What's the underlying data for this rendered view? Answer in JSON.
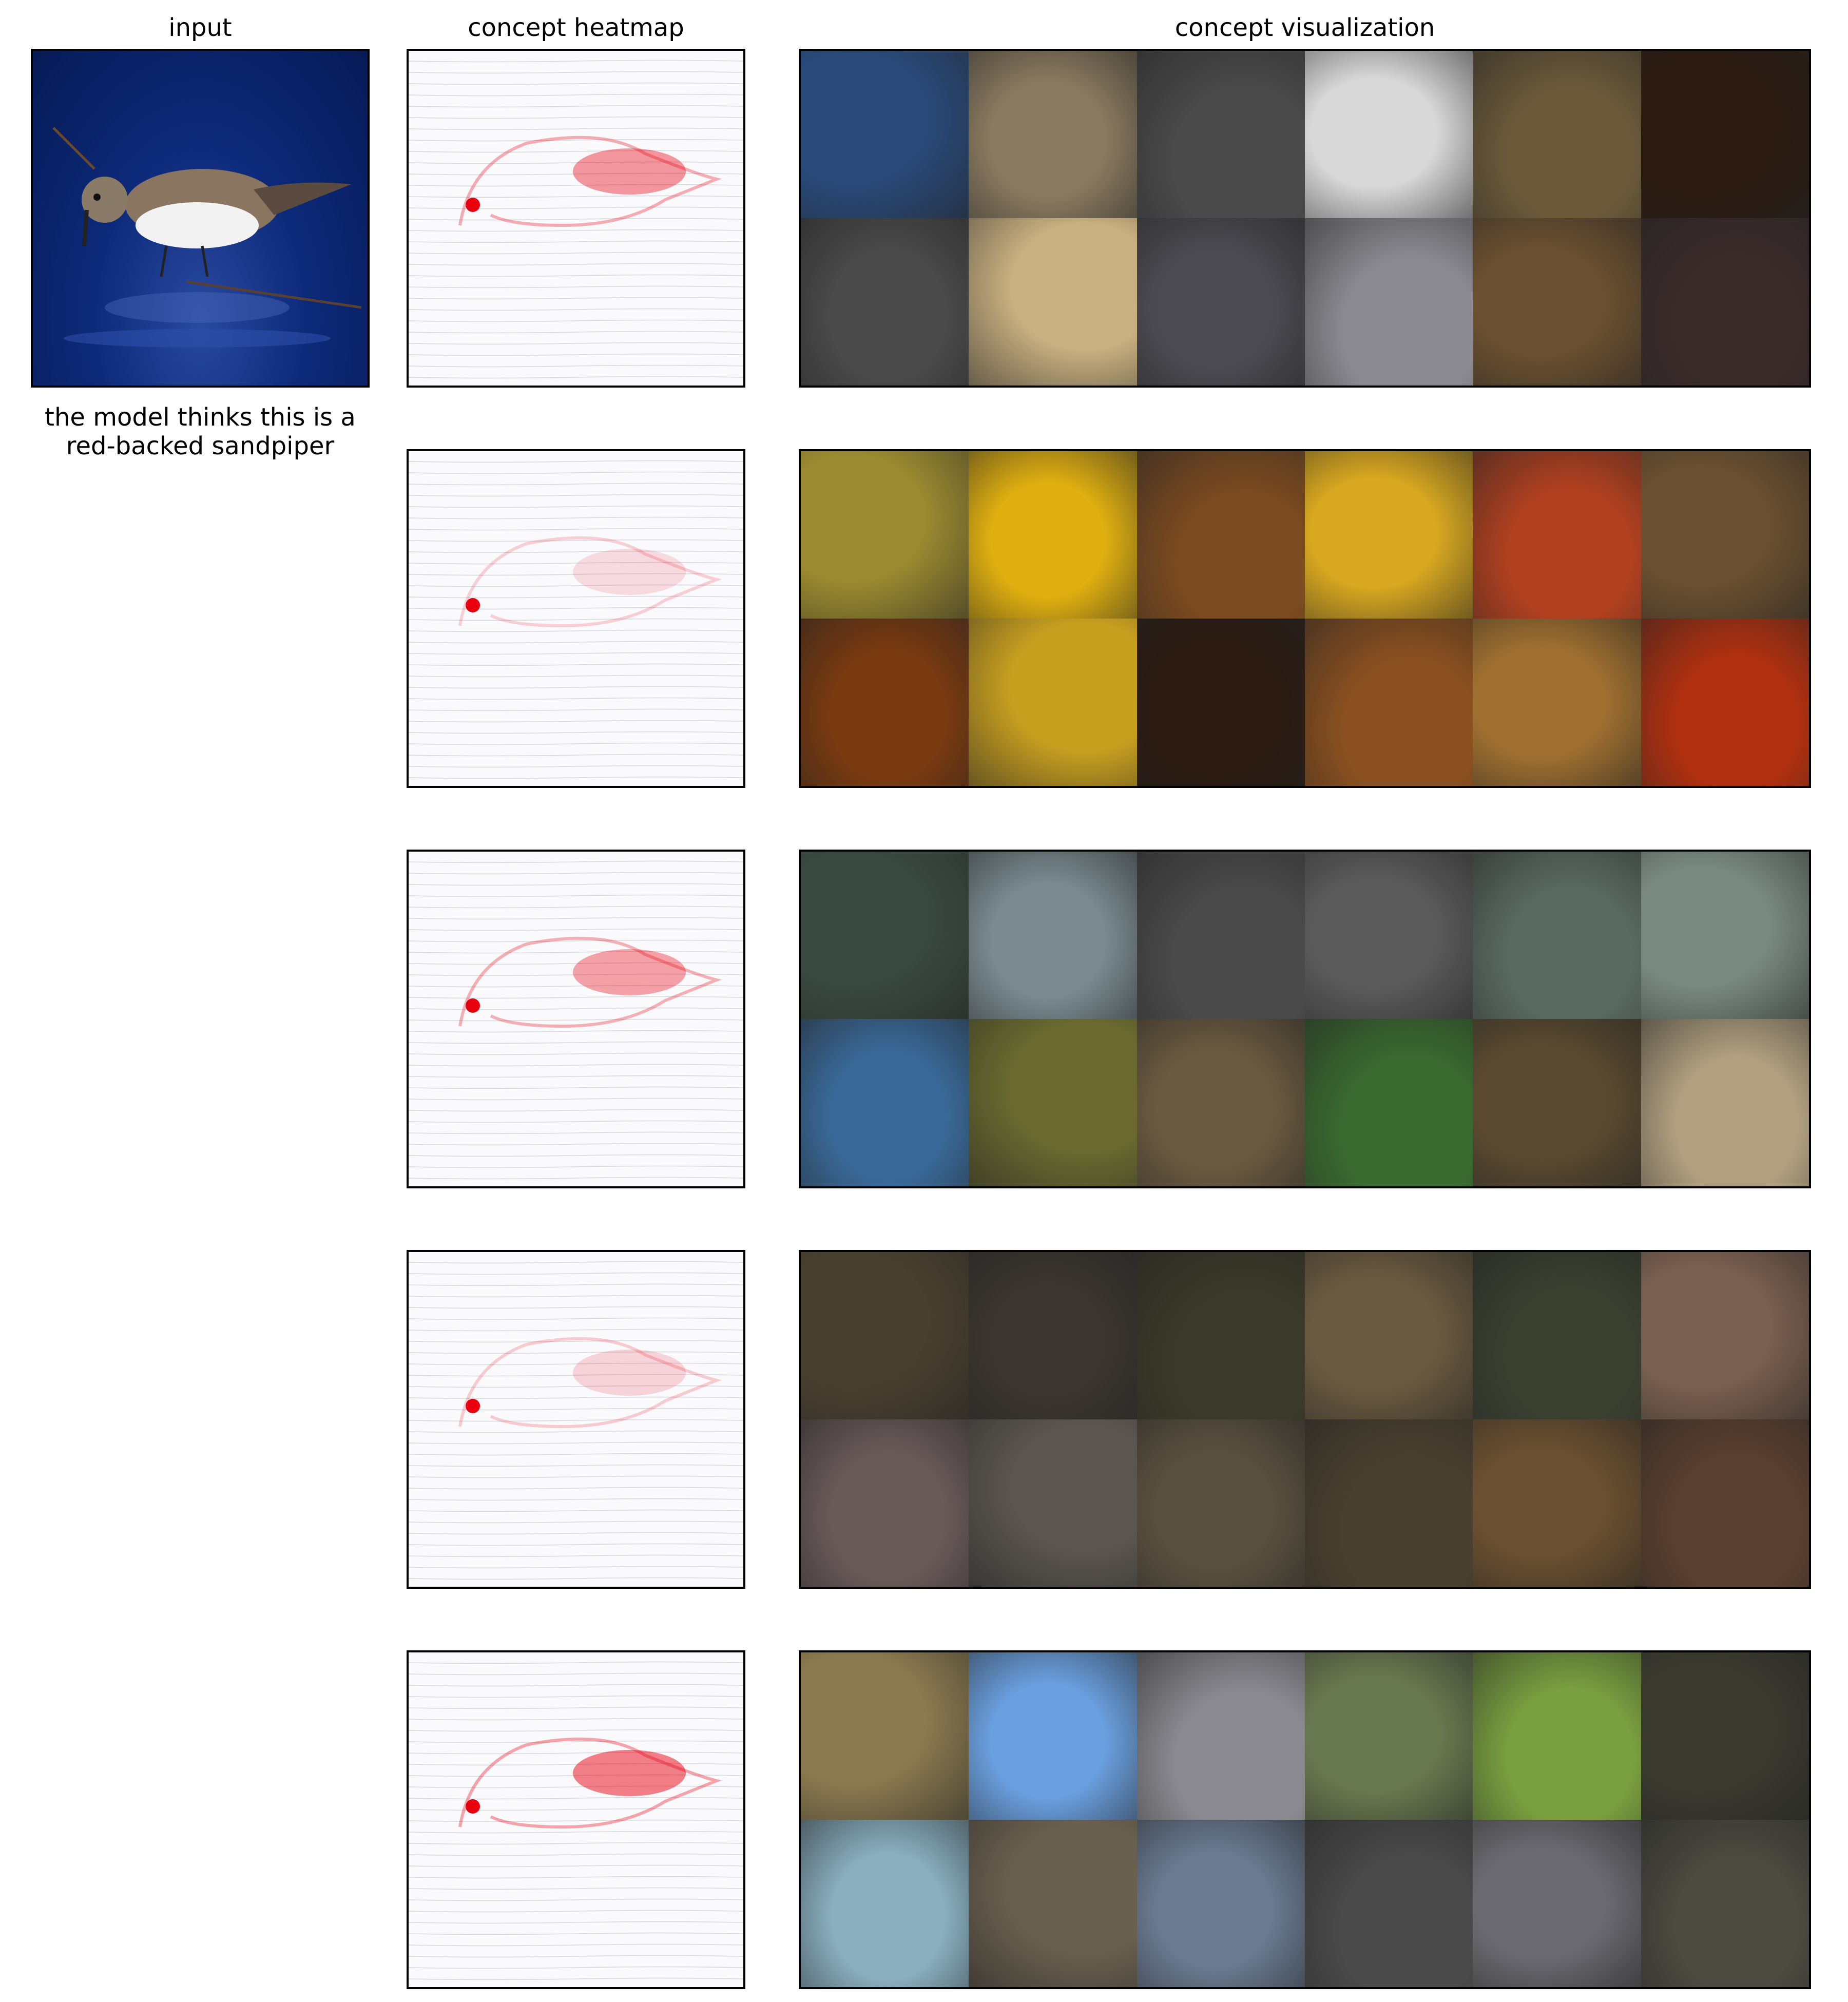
{
  "columns": {
    "input": "input",
    "heatmap": "concept heatmap",
    "visualization": "concept visualization"
  },
  "caption": {
    "line1": "the model thinks this is a",
    "line2": "red-backed sandpiper"
  },
  "heat_color": "#e8000f",
  "rows": [
    {
      "id": 1,
      "heat_intensity": 0.9,
      "tiles": [
        "#2a4a7a",
        "#8a7a60",
        "#4a4a4a",
        "#d8d8d8",
        "#6a5a3a",
        "#2a1a10",
        "#4a4a4a",
        "#c8b080",
        "#4a4a50",
        "#8a8a90",
        "#6a5030",
        "#3a2a2a"
      ]
    },
    {
      "id": 2,
      "heat_intensity": 0.5,
      "tiles": [
        "#9a8a30",
        "#e0b010",
        "#7a4a20",
        "#d8a820",
        "#b04020",
        "#6a5030",
        "#7a3a10",
        "#c8a020",
        "#2a1a10",
        "#8a5020",
        "#a07030",
        "#b03010"
      ]
    },
    {
      "id": 3,
      "heat_intensity": 0.85,
      "tiles": [
        "#3a4a40",
        "#7a8a90",
        "#4a4a4a",
        "#5a5a5a",
        "#5a6a60",
        "#7a8a80",
        "#3a6a9a",
        "#6a6a30",
        "#6a5a40",
        "#3a6a30",
        "#5a4a30",
        "#b0a080"
      ]
    },
    {
      "id": 4,
      "heat_intensity": 0.55,
      "tiles": [
        "#4a4030",
        "#3a3530",
        "#3a3a2a",
        "#6a5a40",
        "#3a4030",
        "#7a6050",
        "#6a5a5a",
        "#5a5550",
        "#5a5040",
        "#4a4030",
        "#6a5030",
        "#5a4030"
      ]
    },
    {
      "id": 5,
      "heat_intensity": 1.0,
      "tiles": [
        "#8a7a50",
        "#6aa0e0",
        "#8a8a90",
        "#6a7a50",
        "#7aa040",
        "#3a3a30",
        "#8ab0c0",
        "#6a6050",
        "#6a7a90",
        "#4a4a4a",
        "#6a6a70",
        "#4a4a40"
      ]
    }
  ]
}
